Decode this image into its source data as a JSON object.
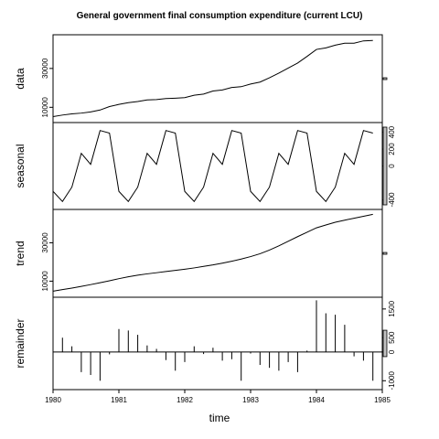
{
  "chart_data": {
    "type": "line",
    "title": "General government final consumption expenditure (current LCU)",
    "xlabel": "time",
    "x_ticks": [
      "1980",
      "1981",
      "1982",
      "1983",
      "1984",
      "1985"
    ],
    "x": [
      1980.0,
      1980.143,
      1980.286,
      1980.429,
      1980.571,
      1980.714,
      1980.857,
      1981.0,
      1981.143,
      1981.286,
      1981.429,
      1981.571,
      1981.714,
      1981.857,
      1982.0,
      1982.143,
      1982.286,
      1982.429,
      1982.571,
      1982.714,
      1982.857,
      1983.0,
      1983.143,
      1983.286,
      1983.429,
      1983.571,
      1983.714,
      1983.857,
      1984.0,
      1984.143,
      1984.286,
      1984.429,
      1984.571,
      1984.714,
      1984.857
    ],
    "xlim": [
      1980,
      1985
    ],
    "panels": [
      {
        "name": "data",
        "ylabel": "data",
        "style": "line",
        "y_ticks": [
          "10000",
          "30000"
        ],
        "ylim": [
          4500,
          45000
        ],
        "values": [
          5200,
          6000,
          6600,
          7000,
          7600,
          8600,
          10400,
          11500,
          12400,
          13000,
          13800,
          14000,
          14500,
          14700,
          15000,
          16200,
          16800,
          18400,
          18900,
          20200,
          20600,
          22000,
          23000,
          25200,
          27600,
          30200,
          32800,
          36200,
          39800,
          40600,
          42000,
          43000,
          43000,
          44200,
          44400
        ]
      },
      {
        "name": "seasonal",
        "ylabel": "seasonal",
        "style": "line",
        "y_ticks": [
          "-400",
          "0",
          "200",
          "400"
        ],
        "ylim": [
          -460,
          460
        ],
        "values": [
          -300,
          -420,
          -250,
          150,
          20,
          420,
          390,
          -300,
          -420,
          -250,
          150,
          20,
          420,
          390,
          -300,
          -420,
          -250,
          150,
          20,
          420,
          390,
          -300,
          -420,
          -250,
          150,
          20,
          420,
          390,
          -300,
          -420,
          -250,
          150,
          20,
          420,
          390
        ]
      },
      {
        "name": "trend",
        "ylabel": "trend",
        "style": "line",
        "y_ticks": [
          "10000",
          "30000"
        ],
        "ylim": [
          4000,
          45000
        ],
        "values": [
          4800,
          5600,
          6400,
          7300,
          8200,
          9200,
          10200,
          11300,
          12300,
          13100,
          13800,
          14400,
          15000,
          15600,
          16200,
          16900,
          17700,
          18500,
          19400,
          20400,
          21500,
          22800,
          24300,
          26200,
          28400,
          30800,
          33200,
          35500,
          37800,
          39300,
          40700,
          41800,
          42800,
          43800,
          44800
        ]
      },
      {
        "name": "remainder",
        "ylabel": "remainder",
        "style": "spikes",
        "y_ticks": [
          "-1000",
          "0",
          "500",
          "1500"
        ],
        "ylim": [
          -1150,
          1750
        ],
        "values": [
          250,
          500,
          200,
          -700,
          -800,
          -1000,
          -80,
          800,
          750,
          600,
          230,
          110,
          -280,
          -650,
          -350,
          200,
          -70,
          150,
          -300,
          -250,
          -1000,
          -50,
          -450,
          -550,
          -650,
          -350,
          -700,
          50,
          1800,
          1350,
          1300,
          950,
          -150,
          -300,
          -1000
        ]
      }
    ],
    "scale_bars": "right",
    "grid": false
  }
}
